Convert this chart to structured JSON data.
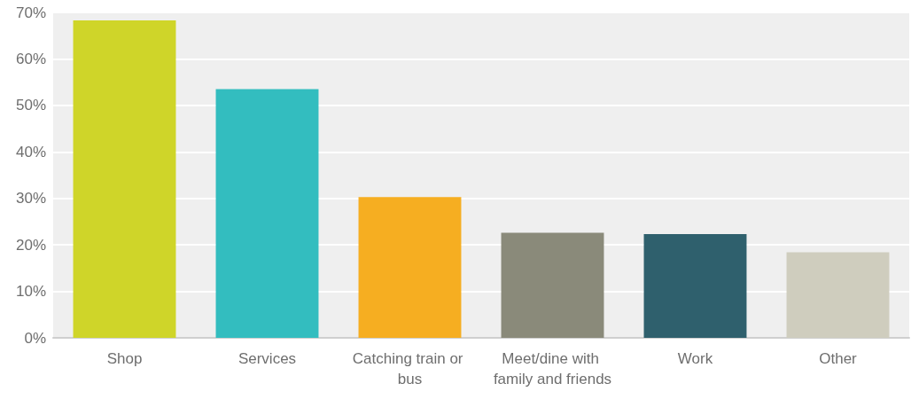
{
  "chart_data": {
    "type": "bar",
    "categories": [
      "Shop",
      "Services",
      "Catching train or bus",
      "Meet/dine with family and friends",
      "Work",
      "Other"
    ],
    "values": [
      68.3,
      53.5,
      30.3,
      22.6,
      22.3,
      18.4
    ],
    "colors": [
      "#cfd529",
      "#33bdbf",
      "#f6ae21",
      "#8a8a7a",
      "#2f606d",
      "#cfcdbe"
    ],
    "ylim": [
      0,
      70
    ],
    "yticks": [
      {
        "value": 0,
        "label": "0%"
      },
      {
        "value": 10,
        "label": "10%"
      },
      {
        "value": 20,
        "label": "20%"
      },
      {
        "value": 30,
        "label": "30%"
      },
      {
        "value": 40,
        "label": "40%"
      },
      {
        "value": 50,
        "label": "50%"
      },
      {
        "value": 60,
        "label": "60%"
      },
      {
        "value": 70,
        "label": "70%"
      }
    ],
    "grid": "y"
  }
}
